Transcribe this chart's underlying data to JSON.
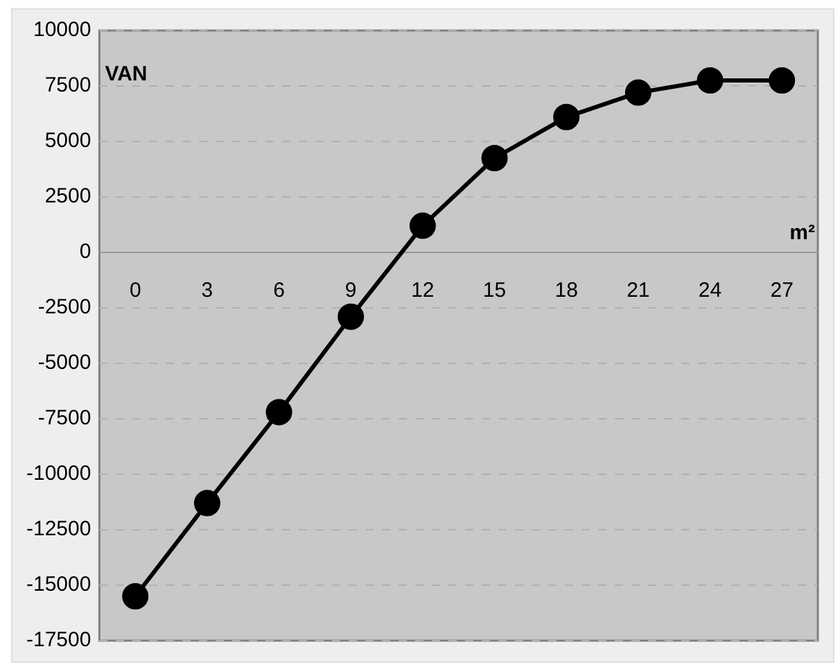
{
  "chart_data": {
    "type": "line",
    "xlabel": "m²",
    "ylabel": "VAN",
    "categories": [
      "0",
      "3",
      "6",
      "9",
      "12",
      "15",
      "18",
      "21",
      "24",
      "27"
    ],
    "series": [
      {
        "color": "#000000",
        "values": [
          -15500,
          -11300,
          -7200,
          -2900,
          1200,
          4250,
          6100,
          7200,
          7750,
          7750
        ]
      }
    ],
    "ylim": [
      -17500,
      10000
    ],
    "yticks": [
      -17500,
      -15000,
      -12500,
      -10000,
      -7500,
      -5000,
      -2500,
      0,
      2500,
      5000,
      7500,
      10000
    ],
    "grid": "y",
    "legend": false,
    "marker": "circle",
    "line_style": "solid"
  }
}
